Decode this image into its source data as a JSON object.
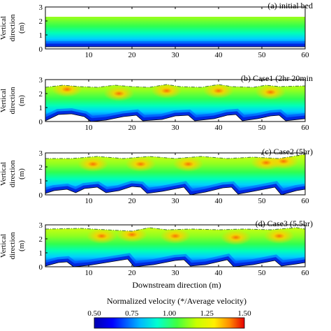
{
  "chart_data": [
    {
      "type": "heatmap",
      "title": "(a) initial bed",
      "xlim": [
        0,
        60
      ],
      "ylim": [
        0,
        3
      ],
      "x_ticks": [
        "10",
        "20",
        "30",
        "40",
        "50",
        "60"
      ],
      "y_ticks": [
        "0",
        "1",
        "2",
        "3"
      ],
      "ylabel": [
        "Vertical",
        "direction",
        "(m)"
      ],
      "water_surface": [
        [
          0,
          2.3
        ],
        [
          60,
          2.3
        ]
      ],
      "bed": [
        [
          0,
          0.15
        ],
        [
          60,
          0.15
        ]
      ],
      "hotspots": []
    },
    {
      "type": "heatmap",
      "title": "(b) Case1 (2hr 20min",
      "xlim": [
        0,
        60
      ],
      "ylim": [
        0,
        3
      ],
      "x_ticks": [
        "10",
        "20",
        "30",
        "40",
        "50",
        "60"
      ],
      "y_ticks": [
        "0",
        "1",
        "2",
        "3"
      ],
      "ylabel": [
        "Vertical",
        "direction",
        "(m)"
      ],
      "water_surface": [
        [
          0,
          2.45
        ],
        [
          4,
          2.6
        ],
        [
          8,
          2.5
        ],
        [
          12,
          2.45
        ],
        [
          16,
          2.6
        ],
        [
          20,
          2.5
        ],
        [
          24,
          2.45
        ],
        [
          28,
          2.65
        ],
        [
          31,
          2.5
        ],
        [
          36,
          2.45
        ],
        [
          40,
          2.65
        ],
        [
          43,
          2.5
        ],
        [
          48,
          2.45
        ],
        [
          51,
          2.6
        ],
        [
          54,
          2.5
        ],
        [
          60,
          2.55
        ]
      ],
      "bed": [
        [
          0,
          0.05
        ],
        [
          3,
          0.5
        ],
        [
          6,
          0.55
        ],
        [
          9,
          0.35
        ],
        [
          10.5,
          0.0
        ],
        [
          14,
          0.1
        ],
        [
          18,
          0.35
        ],
        [
          21,
          0.45
        ],
        [
          22.5,
          0.05
        ],
        [
          27,
          0.15
        ],
        [
          30,
          0.4
        ],
        [
          33,
          0.45
        ],
        [
          34.5,
          0.05
        ],
        [
          39,
          0.2
        ],
        [
          42,
          0.45
        ],
        [
          44,
          0.5
        ],
        [
          45.5,
          0.05
        ],
        [
          49,
          0.2
        ],
        [
          52,
          0.4
        ],
        [
          54,
          0.45
        ],
        [
          55.5,
          0.05
        ],
        [
          60,
          0.2
        ]
      ],
      "hotspots": [
        [
          5,
          2.3
        ],
        [
          17,
          2.0
        ],
        [
          28,
          2.2
        ],
        [
          40,
          2.2
        ],
        [
          52,
          2.1
        ]
      ]
    },
    {
      "type": "heatmap",
      "title": "(c) Case2 (5hr)",
      "xlim": [
        0,
        60
      ],
      "ylim": [
        0,
        3
      ],
      "x_ticks": [
        "10",
        "20",
        "30",
        "40",
        "50",
        "60"
      ],
      "y_ticks": [
        "0",
        "1",
        "2",
        "3"
      ],
      "ylabel": [
        "Vertical",
        "direction",
        "(m)"
      ],
      "water_surface": [
        [
          0,
          2.6
        ],
        [
          6,
          2.6
        ],
        [
          12,
          2.75
        ],
        [
          18,
          2.6
        ],
        [
          24,
          2.75
        ],
        [
          30,
          2.6
        ],
        [
          36,
          2.75
        ],
        [
          42,
          2.6
        ],
        [
          48,
          2.7
        ],
        [
          54,
          2.6
        ],
        [
          60,
          2.9
        ]
      ],
      "bed": [
        [
          0,
          0.1
        ],
        [
          2,
          0.3
        ],
        [
          5,
          0.4
        ],
        [
          7,
          0.15
        ],
        [
          9,
          0.45
        ],
        [
          12,
          0.55
        ],
        [
          14,
          0.15
        ],
        [
          17,
          0.3
        ],
        [
          20,
          0.6
        ],
        [
          22,
          0.55
        ],
        [
          23.5,
          0.1
        ],
        [
          27,
          0.25
        ],
        [
          32,
          0.55
        ],
        [
          33.5,
          0.0
        ],
        [
          37,
          0.2
        ],
        [
          41,
          0.5
        ],
        [
          43,
          0.55
        ],
        [
          44.5,
          0.05
        ],
        [
          48,
          0.25
        ],
        [
          53,
          0.55
        ],
        [
          54.5,
          0.0
        ],
        [
          58,
          0.3
        ],
        [
          60,
          0.4
        ]
      ],
      "hotspots": [
        [
          55,
          2.4
        ],
        [
          51,
          2.3
        ],
        [
          22,
          2.2
        ],
        [
          33,
          2.2
        ],
        [
          11,
          2.2
        ]
      ]
    },
    {
      "type": "heatmap",
      "title": "(d) Case3 (5.5hr)",
      "xlim": [
        0,
        60
      ],
      "ylim": [
        0,
        3
      ],
      "x_ticks": [
        "10",
        "20",
        "30",
        "40",
        "50",
        "60"
      ],
      "y_ticks": [
        "0",
        "1",
        "2",
        "3"
      ],
      "ylabel": [
        "Vertical",
        "direction",
        "(m)"
      ],
      "xlabel": "Downstream direction (m)",
      "water_surface": [
        [
          0,
          2.7
        ],
        [
          8,
          2.75
        ],
        [
          14,
          2.65
        ],
        [
          20,
          2.55
        ],
        [
          24,
          2.8
        ],
        [
          28,
          2.65
        ],
        [
          34,
          2.7
        ],
        [
          40,
          2.65
        ],
        [
          46,
          2.7
        ],
        [
          52,
          2.65
        ],
        [
          58,
          2.8
        ],
        [
          60,
          2.7
        ]
      ],
      "bed": [
        [
          0,
          0.05
        ],
        [
          3,
          0.3
        ],
        [
          5,
          0.35
        ],
        [
          6.5,
          0.0
        ],
        [
          10,
          0.1
        ],
        [
          14,
          0.3
        ],
        [
          19,
          0.55
        ],
        [
          20.5,
          0.0
        ],
        [
          25,
          0.15
        ],
        [
          30,
          0.45
        ],
        [
          32,
          0.5
        ],
        [
          33.5,
          0.05
        ],
        [
          37,
          0.15
        ],
        [
          42,
          0.5
        ],
        [
          43.5,
          0.0
        ],
        [
          48,
          0.15
        ],
        [
          53,
          0.45
        ],
        [
          54.5,
          0.05
        ],
        [
          58,
          0.2
        ],
        [
          60,
          0.3
        ]
      ],
      "hotspots": [
        [
          20,
          2.3
        ],
        [
          13,
          2.2
        ],
        [
          30,
          2.2
        ],
        [
          44,
          2.1
        ],
        [
          54,
          2.2
        ]
      ]
    }
  ],
  "colorbar": {
    "label": "Normalized velocity (*/Average velocity)",
    "min": 0.5,
    "max": 1.5,
    "ticks": [
      "0.50",
      "0.75",
      "1.00",
      "1.25",
      "1.50"
    ]
  }
}
